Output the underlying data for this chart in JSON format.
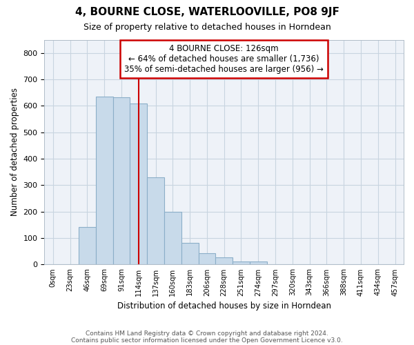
{
  "title": "4, BOURNE CLOSE, WATERLOOVILLE, PO8 9JF",
  "subtitle": "Size of property relative to detached houses in Horndean",
  "xlabel": "Distribution of detached houses by size in Horndean",
  "ylabel": "Number of detached properties",
  "bar_color": "#c8daea",
  "bar_edge_color": "#8baec8",
  "marker_line_color": "#cc0000",
  "annotation_box_color": "#cc0000",
  "grid_color": "#c8d4e0",
  "background_color": "#eef2f8",
  "bins": [
    "0sqm",
    "23sqm",
    "46sqm",
    "69sqm",
    "91sqm",
    "114sqm",
    "137sqm",
    "160sqm",
    "183sqm",
    "206sqm",
    "228sqm",
    "251sqm",
    "274sqm",
    "297sqm",
    "320sqm",
    "343sqm",
    "366sqm",
    "388sqm",
    "411sqm",
    "434sqm",
    "457sqm"
  ],
  "values": [
    2,
    2,
    143,
    635,
    632,
    608,
    330,
    200,
    83,
    43,
    27,
    12,
    12,
    2,
    2,
    1,
    1,
    1,
    1,
    1,
    2
  ],
  "marker_bin_index": 5,
  "annotation_text": "4 BOURNE CLOSE: 126sqm\n← 64% of detached houses are smaller (1,736)\n35% of semi-detached houses are larger (956) →",
  "ylim": [
    0,
    850
  ],
  "yticks": [
    0,
    100,
    200,
    300,
    400,
    500,
    600,
    700,
    800
  ],
  "footnote1": "Contains HM Land Registry data © Crown copyright and database right 2024.",
  "footnote2": "Contains public sector information licensed under the Open Government Licence v3.0."
}
